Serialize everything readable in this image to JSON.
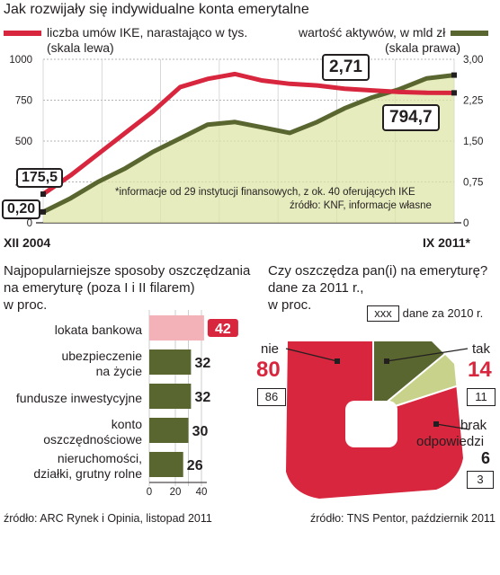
{
  "title": "Jak rozwijały się indywidualne konta emerytalne",
  "legend": {
    "left_line1": "liczba umów IKE, narastająco w tys.",
    "left_line2": "(skala lewa)",
    "right_line1": "wartość aktywów, w mld zł",
    "right_line2": "(skala prawa)"
  },
  "colors": {
    "red": "#d7263d",
    "green": "#59662f",
    "light_green": "#c9d28a",
    "pink": "#f3b1b8"
  },
  "line_chart": {
    "left_axis": {
      "ticks": [
        "1000",
        "750",
        "500",
        "250",
        "0"
      ],
      "ylim": [
        0,
        1000
      ]
    },
    "right_axis": {
      "ticks": [
        "3,00",
        "2,25",
        "1,50",
        "0,75",
        "0"
      ],
      "ylim": [
        0,
        3
      ]
    },
    "x_start": "XII 2004",
    "x_end": "IX 2011*",
    "note": "*informacje od 29 instytucji finansowych, z ok. 40 oferujących IKE",
    "source": "źródło: KNF, informacje własne",
    "callouts": {
      "red_start": "175,5",
      "green_start": "0,20",
      "green_end": "2,71",
      "red_end": "794,7"
    }
  },
  "chart_data": [
    {
      "type": "line",
      "title": "Jak rozwijały się indywidualne konta emerytalne",
      "x": [
        "XII 2004",
        "",
        "",
        "",
        "",
        "",
        "",
        "",
        "",
        "",
        "",
        "",
        "",
        "",
        "",
        "IX 2011*"
      ],
      "series": [
        {
          "name": "liczba umów IKE, narastająco w tys.",
          "axis": "left",
          "values": [
            175.5,
            290,
            420,
            550,
            680,
            830,
            880,
            910,
            870,
            850,
            840,
            820,
            810,
            800,
            795,
            794.7
          ]
        },
        {
          "name": "wartość aktywów, w mld zł",
          "axis": "right",
          "values": [
            0.2,
            0.45,
            0.75,
            1.0,
            1.3,
            1.55,
            1.8,
            1.85,
            1.75,
            1.65,
            1.85,
            2.1,
            2.3,
            2.45,
            2.65,
            2.71
          ]
        }
      ],
      "ylim_left": [
        0,
        1000
      ],
      "ylim_right": [
        0,
        3
      ]
    },
    {
      "type": "bar",
      "title": "Najpopularniejsze sposoby oszczędzania na emeryturę (poza I i II filarem) w proc.",
      "categories": [
        "lokata bankowa",
        "ubezpieczenie na życie",
        "fundusze inwestycyjne",
        "konto oszczędnościowe",
        "nieruchomości, działki, grutny rolne"
      ],
      "values": [
        42,
        32,
        32,
        30,
        26
      ],
      "xlim": [
        0,
        40
      ],
      "xticks": [
        "0",
        "20",
        "40"
      ]
    },
    {
      "type": "pie",
      "title": "Czy oszczędza pan(i) na emeryturę? dane za 2011 r., w proc.",
      "labels": [
        "nie",
        "tak",
        "brak odpowiedzi"
      ],
      "values": [
        80,
        14,
        6
      ],
      "values_2010": [
        86,
        11,
        3
      ]
    }
  ],
  "bars_section": {
    "title_line1": "Najpopularniejsze sposoby oszczędzania",
    "title_line2": "na emeryturę (poza I i II filarem)",
    "title_line3": "w proc.",
    "labels": [
      [
        "lokata bankowa"
      ],
      [
        "ubezpieczenie",
        "na życie"
      ],
      [
        "fundusze inwestycyjne"
      ],
      [
        "konto",
        "oszczędnościowe"
      ],
      [
        "nieruchomości,",
        "działki, grutny rolne"
      ]
    ],
    "values": [
      "42",
      "32",
      "32",
      "30",
      "26"
    ],
    "source": "źródło: ARC Rynek i Opinia, listopad 2011"
  },
  "pie_section": {
    "title_line1": "Czy oszczędza pan(i) na emeryturę?",
    "title_line2": "dane za 2011 r.,",
    "title_line3": "w proc.",
    "legend_box": "xxx",
    "legend_text": "dane za 2010 r.",
    "nie_label": "nie",
    "nie_value": "80",
    "nie_prev": "86",
    "tak_label": "tak",
    "tak_value": "14",
    "tak_prev": "11",
    "brak_label1": "brak",
    "brak_label2": "odpowiedzi",
    "brak_value": "6",
    "brak_prev": "3",
    "source": "źródło: TNS Pentor, październik 2011"
  }
}
